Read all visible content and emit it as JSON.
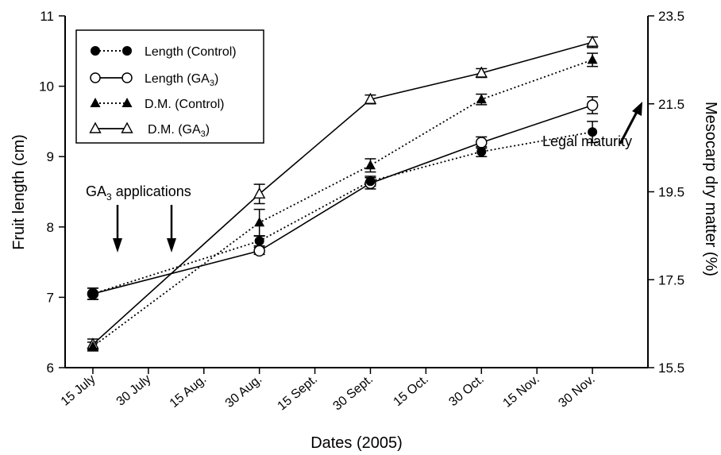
{
  "chart_data": {
    "type": "line",
    "xlabel": "Dates (2005)",
    "ylabel_left": "Fruit length (cm)",
    "ylabel_right": "Mesocarp dry matter (%)",
    "x_ticks": [
      "15 July",
      "30 July",
      "15 Aug.",
      "30 Aug.",
      "15 Sept.",
      "30 Sept.",
      "15 Oct.",
      "30 Oct.",
      "15 Nov.",
      "30 Nov."
    ],
    "x_range": [
      0,
      10.5
    ],
    "ylim_left": [
      6,
      11
    ],
    "yticks_left": [
      "6",
      "7",
      "8",
      "9",
      "10",
      "11"
    ],
    "ylim_right": [
      15.5,
      23.5
    ],
    "yticks_right": [
      "15.5",
      "17.5",
      "19.5",
      "21.5",
      "23.5"
    ],
    "grid": false,
    "legend_position": "top-left",
    "series": [
      {
        "name": "Length (Control)",
        "axis": "left",
        "line": "dotted",
        "marker": "filled-circle",
        "x": [
          "15 July",
          "30 Aug.",
          "30 Sept.",
          "30 Oct.",
          "30 Nov."
        ],
        "values": [
          7.05,
          7.8,
          8.65,
          9.07,
          9.35
        ],
        "errors": [
          0.08,
          0.07,
          0.07,
          0.07,
          0.15
        ]
      },
      {
        "name": "Length (GA3)",
        "axis": "left",
        "line": "solid",
        "marker": "open-circle",
        "x": [
          "15 July",
          "30 Aug.",
          "30 Sept.",
          "30 Oct.",
          "30 Nov."
        ],
        "values": [
          7.05,
          7.66,
          8.62,
          9.2,
          9.73
        ],
        "errors": [
          0.08,
          0.05,
          0.08,
          0.08,
          0.12
        ]
      },
      {
        "name": "D.M. (Control)",
        "axis": "right",
        "line": "dotted",
        "marker": "filled-triangle",
        "x": [
          "15 July",
          "30 Aug.",
          "30 Sept.",
          "30 Oct.",
          "30 Nov."
        ],
        "values": [
          15.98,
          18.8,
          20.1,
          21.6,
          22.5
        ],
        "errors": [
          0.1,
          0.3,
          0.15,
          0.12,
          0.15
        ]
      },
      {
        "name": "D.M. (GA3)",
        "axis": "right",
        "line": "solid",
        "marker": "open-triangle",
        "x": [
          "15 July",
          "30 Aug.",
          "30 Sept.",
          "30 Oct.",
          "30 Nov."
        ],
        "values": [
          16.03,
          19.45,
          21.6,
          22.2,
          22.9
        ],
        "errors": [
          0.12,
          0.22,
          0.1,
          0.1,
          0.12
        ]
      }
    ],
    "annotations": [
      {
        "label": "GA3 applications",
        "points_to": [
          "15 July",
          "30 July"
        ]
      },
      {
        "label": "Legal maturity"
      }
    ]
  },
  "legend": {
    "items": [
      {
        "text": "Length (Control)",
        "sub": ""
      },
      {
        "text": "Length (GA",
        "sub": "3",
        "tail": ")"
      },
      {
        "text": "D.M. (Control)",
        "sub": ""
      },
      {
        "text": "D.M. (GA",
        "sub": "3",
        "tail": ")"
      }
    ]
  },
  "annotation_labels": {
    "ga3_main": "GA",
    "ga3_sub": "3",
    "ga3_tail": " applications",
    "legal_maturity": "Legal maturity"
  }
}
